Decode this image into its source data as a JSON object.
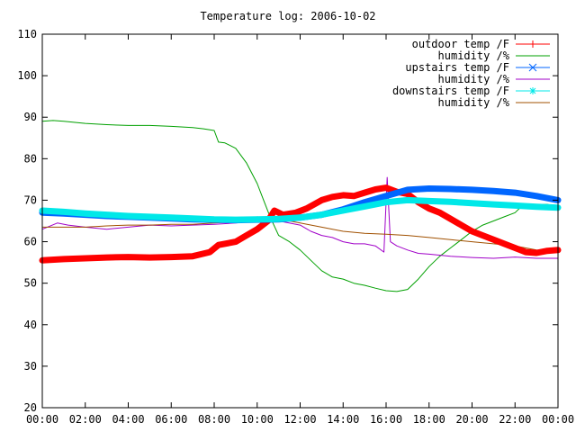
{
  "chart_data": {
    "type": "line",
    "title": "Temperature log: 2006-10-02",
    "xlabel": "",
    "ylabel": "",
    "x_unit": "hours",
    "xlim": [
      0,
      24
    ],
    "ylim": [
      20,
      110
    ],
    "grid": false,
    "legend_position": "top-right",
    "x_ticks": [
      0,
      2,
      4,
      6,
      8,
      10,
      12,
      14,
      16,
      18,
      20,
      22,
      24
    ],
    "x_tick_labels": [
      "00:00",
      "02:00",
      "04:00",
      "06:00",
      "08:00",
      "10:00",
      "12:00",
      "14:00",
      "16:00",
      "18:00",
      "20:00",
      "22:00",
      "00:00"
    ],
    "y_ticks": [
      20,
      30,
      40,
      50,
      60,
      70,
      80,
      90,
      100,
      110
    ],
    "y_tick_labels": [
      "20",
      "30",
      "40",
      "50",
      "60",
      "70",
      "80",
      "90",
      "100",
      "110"
    ],
    "series": [
      {
        "name": "outdoor temp /F",
        "color": "#ff0000",
        "marker": "plus",
        "points": [
          [
            0,
            55.5
          ],
          [
            1,
            55.8
          ],
          [
            2,
            56.0
          ],
          [
            3,
            56.2
          ],
          [
            4,
            56.3
          ],
          [
            5,
            56.2
          ],
          [
            6,
            56.3
          ],
          [
            7,
            56.5
          ],
          [
            7.8,
            57.5
          ],
          [
            8.2,
            59.2
          ],
          [
            9,
            60.0
          ],
          [
            9.5,
            61.5
          ],
          [
            10,
            63.0
          ],
          [
            10.5,
            65.0
          ],
          [
            10.8,
            67.5
          ],
          [
            11.2,
            66.5
          ],
          [
            11.8,
            67.0
          ],
          [
            12.3,
            68.0
          ],
          [
            13,
            70.0
          ],
          [
            13.5,
            70.8
          ],
          [
            14,
            71.2
          ],
          [
            14.5,
            71.0
          ],
          [
            15,
            71.8
          ],
          [
            15.5,
            72.6
          ],
          [
            16,
            73.0
          ],
          [
            16.5,
            72.0
          ],
          [
            17,
            71.5
          ],
          [
            17.5,
            69.5
          ],
          [
            18,
            68.0
          ],
          [
            18.5,
            67.0
          ],
          [
            19,
            65.5
          ],
          [
            19.5,
            64.0
          ],
          [
            20,
            62.5
          ],
          [
            20.5,
            61.5
          ],
          [
            21,
            60.5
          ],
          [
            21.5,
            59.5
          ],
          [
            22,
            58.5
          ],
          [
            22.5,
            57.5
          ],
          [
            23,
            57.3
          ],
          [
            23.5,
            57.8
          ],
          [
            24,
            58.0
          ]
        ]
      },
      {
        "name": "humidity /%",
        "color": "#00a000",
        "marker": "none",
        "points": [
          [
            0,
            89.0
          ],
          [
            0.5,
            89.2
          ],
          [
            1,
            89.0
          ],
          [
            2,
            88.5
          ],
          [
            3,
            88.2
          ],
          [
            4,
            88.0
          ],
          [
            5,
            88.0
          ],
          [
            6,
            87.8
          ],
          [
            7,
            87.5
          ],
          [
            7.5,
            87.2
          ],
          [
            8,
            86.8
          ],
          [
            8.2,
            84.0
          ],
          [
            8.5,
            83.8
          ],
          [
            9,
            82.5
          ],
          [
            9.5,
            79.0
          ],
          [
            10,
            74.0
          ],
          [
            10.3,
            70.0
          ],
          [
            10.6,
            66.0
          ],
          [
            11,
            61.5
          ],
          [
            11.5,
            60.0
          ],
          [
            12,
            58.0
          ],
          [
            12.5,
            55.5
          ],
          [
            13,
            53.0
          ],
          [
            13.5,
            51.5
          ],
          [
            14,
            51.0
          ],
          [
            14.5,
            50.0
          ],
          [
            15,
            49.5
          ],
          [
            15.5,
            48.8
          ],
          [
            16,
            48.2
          ],
          [
            16.5,
            48.0
          ],
          [
            17,
            48.5
          ],
          [
            17.5,
            51.0
          ],
          [
            18,
            54.0
          ],
          [
            18.5,
            56.5
          ],
          [
            19,
            58.5
          ],
          [
            19.5,
            60.5
          ],
          [
            20,
            62.5
          ],
          [
            20.5,
            64.0
          ],
          [
            21,
            65.0
          ],
          [
            21.5,
            66.0
          ],
          [
            22,
            67.0
          ],
          [
            22.3,
            68.5
          ],
          [
            22.6,
            69.0
          ],
          [
            23,
            69.0
          ],
          [
            23.5,
            69.0
          ],
          [
            24,
            68.5
          ]
        ]
      },
      {
        "name": "upstairs temp /F",
        "color": "#0066ff",
        "marker": "cross",
        "points": [
          [
            0,
            67.0
          ],
          [
            1,
            66.8
          ],
          [
            2,
            66.5
          ],
          [
            3,
            66.2
          ],
          [
            4,
            66.0
          ],
          [
            5,
            65.8
          ],
          [
            6,
            65.6
          ],
          [
            7,
            65.4
          ],
          [
            8,
            65.3
          ],
          [
            9,
            65.2
          ],
          [
            10,
            65.3
          ],
          [
            11,
            65.4
          ],
          [
            12,
            65.8
          ],
          [
            13,
            66.5
          ],
          [
            14,
            67.8
          ],
          [
            15,
            69.5
          ],
          [
            16,
            71.0
          ],
          [
            17,
            72.5
          ],
          [
            18,
            72.8
          ],
          [
            19,
            72.7
          ],
          [
            20,
            72.5
          ],
          [
            21,
            72.2
          ],
          [
            22,
            71.8
          ],
          [
            23,
            71.0
          ],
          [
            24,
            70.0
          ]
        ]
      },
      {
        "name": "humidity /%",
        "color": "#a000c8",
        "marker": "none",
        "points": [
          [
            0,
            63.0
          ],
          [
            0.7,
            64.5
          ],
          [
            1.2,
            64.0
          ],
          [
            2,
            63.5
          ],
          [
            3,
            63.0
          ],
          [
            4,
            63.5
          ],
          [
            5,
            64.0
          ],
          [
            6,
            63.8
          ],
          [
            7,
            64.0
          ],
          [
            8,
            64.2
          ],
          [
            9,
            64.5
          ],
          [
            10,
            65.0
          ],
          [
            10.5,
            65.5
          ],
          [
            11,
            65.0
          ],
          [
            12,
            64.0
          ],
          [
            12.5,
            62.5
          ],
          [
            13,
            61.5
          ],
          [
            13.5,
            61.0
          ],
          [
            14,
            60.0
          ],
          [
            14.5,
            59.5
          ],
          [
            15,
            59.5
          ],
          [
            15.5,
            59.0
          ],
          [
            15.9,
            57.5
          ],
          [
            16.05,
            75.5
          ],
          [
            16.2,
            60.0
          ],
          [
            16.5,
            59.0
          ],
          [
            17,
            58.0
          ],
          [
            17.5,
            57.2
          ],
          [
            18,
            57.0
          ],
          [
            19,
            56.5
          ],
          [
            20,
            56.2
          ],
          [
            21,
            56.0
          ],
          [
            22,
            56.3
          ],
          [
            23,
            56.0
          ],
          [
            24,
            56.0
          ]
        ]
      },
      {
        "name": "downstairs temp /F",
        "color": "#00e8e8",
        "marker": "star",
        "points": [
          [
            0,
            67.5
          ],
          [
            1,
            67.2
          ],
          [
            2,
            66.8
          ],
          [
            3,
            66.5
          ],
          [
            4,
            66.2
          ],
          [
            5,
            66.0
          ],
          [
            6,
            65.8
          ],
          [
            7,
            65.6
          ],
          [
            8,
            65.4
          ],
          [
            9,
            65.3
          ],
          [
            10,
            65.4
          ],
          [
            11,
            65.5
          ],
          [
            12,
            65.8
          ],
          [
            13,
            66.5
          ],
          [
            14,
            67.5
          ],
          [
            15,
            68.5
          ],
          [
            16,
            69.5
          ],
          [
            17,
            70.0
          ],
          [
            18,
            69.8
          ],
          [
            19,
            69.6
          ],
          [
            20,
            69.3
          ],
          [
            21,
            69.0
          ],
          [
            22,
            68.7
          ],
          [
            23,
            68.4
          ],
          [
            24,
            68.2
          ]
        ]
      },
      {
        "name": "humidity /%",
        "color": "#a05000",
        "marker": "none",
        "points": [
          [
            0,
            63.5
          ],
          [
            1,
            63.5
          ],
          [
            2,
            63.5
          ],
          [
            3,
            63.8
          ],
          [
            4,
            64.0
          ],
          [
            5,
            64.0
          ],
          [
            6,
            64.2
          ],
          [
            7,
            64.2
          ],
          [
            8,
            64.5
          ],
          [
            9,
            64.8
          ],
          [
            10,
            66.0
          ],
          [
            11,
            65.5
          ],
          [
            12,
            64.5
          ],
          [
            13,
            63.5
          ],
          [
            14,
            62.5
          ],
          [
            15,
            62.0
          ],
          [
            16,
            61.8
          ],
          [
            17,
            61.5
          ],
          [
            18,
            61.0
          ],
          [
            19,
            60.5
          ],
          [
            20,
            60.0
          ],
          [
            21,
            59.5
          ],
          [
            22,
            59.0
          ],
          [
            23,
            58.0
          ],
          [
            24,
            57.5
          ]
        ]
      }
    ]
  }
}
